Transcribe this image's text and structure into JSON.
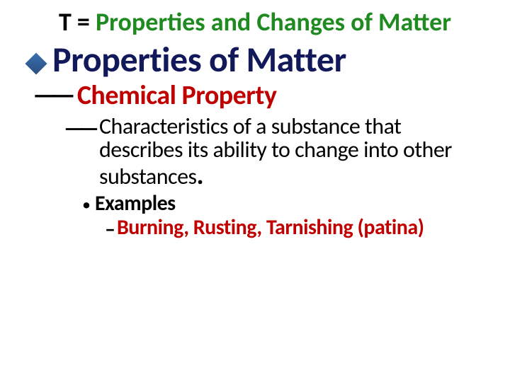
{
  "title": {
    "prefix": "T =  ",
    "main": "Properties and Changes of Matter",
    "prefix_color": "#000000",
    "main_color": "#1f8a1f",
    "fontsize": 36
  },
  "level1": {
    "text": "Properties of Matter",
    "color": "#11195a",
    "fontsize": 50,
    "bullet_type": "diamond"
  },
  "level2": {
    "text": "Chemical Property",
    "color": "#c00000",
    "fontsize": 38,
    "bullet_type": "double-dash"
  },
  "level3": {
    "text": "Characteristics of a substance that describes its ability to change into other substances",
    "period": ".",
    "color": "#000000",
    "fontsize": 32,
    "bullet_type": "double-dash"
  },
  "level4": {
    "text": "Examples",
    "color": "#000000",
    "fontsize": 30,
    "bullet_type": "disc"
  },
  "level5": {
    "text": "Burning, Rusting, Tarnishing (patina)",
    "color": "#c00000",
    "fontsize": 30,
    "bullet_type": "en-dash"
  },
  "colors": {
    "background": "#ffffff",
    "title_black": "#000000",
    "title_green": "#1f8a1f",
    "dark_blue": "#11195a",
    "dark_red": "#c00000",
    "body_black": "#000000"
  }
}
